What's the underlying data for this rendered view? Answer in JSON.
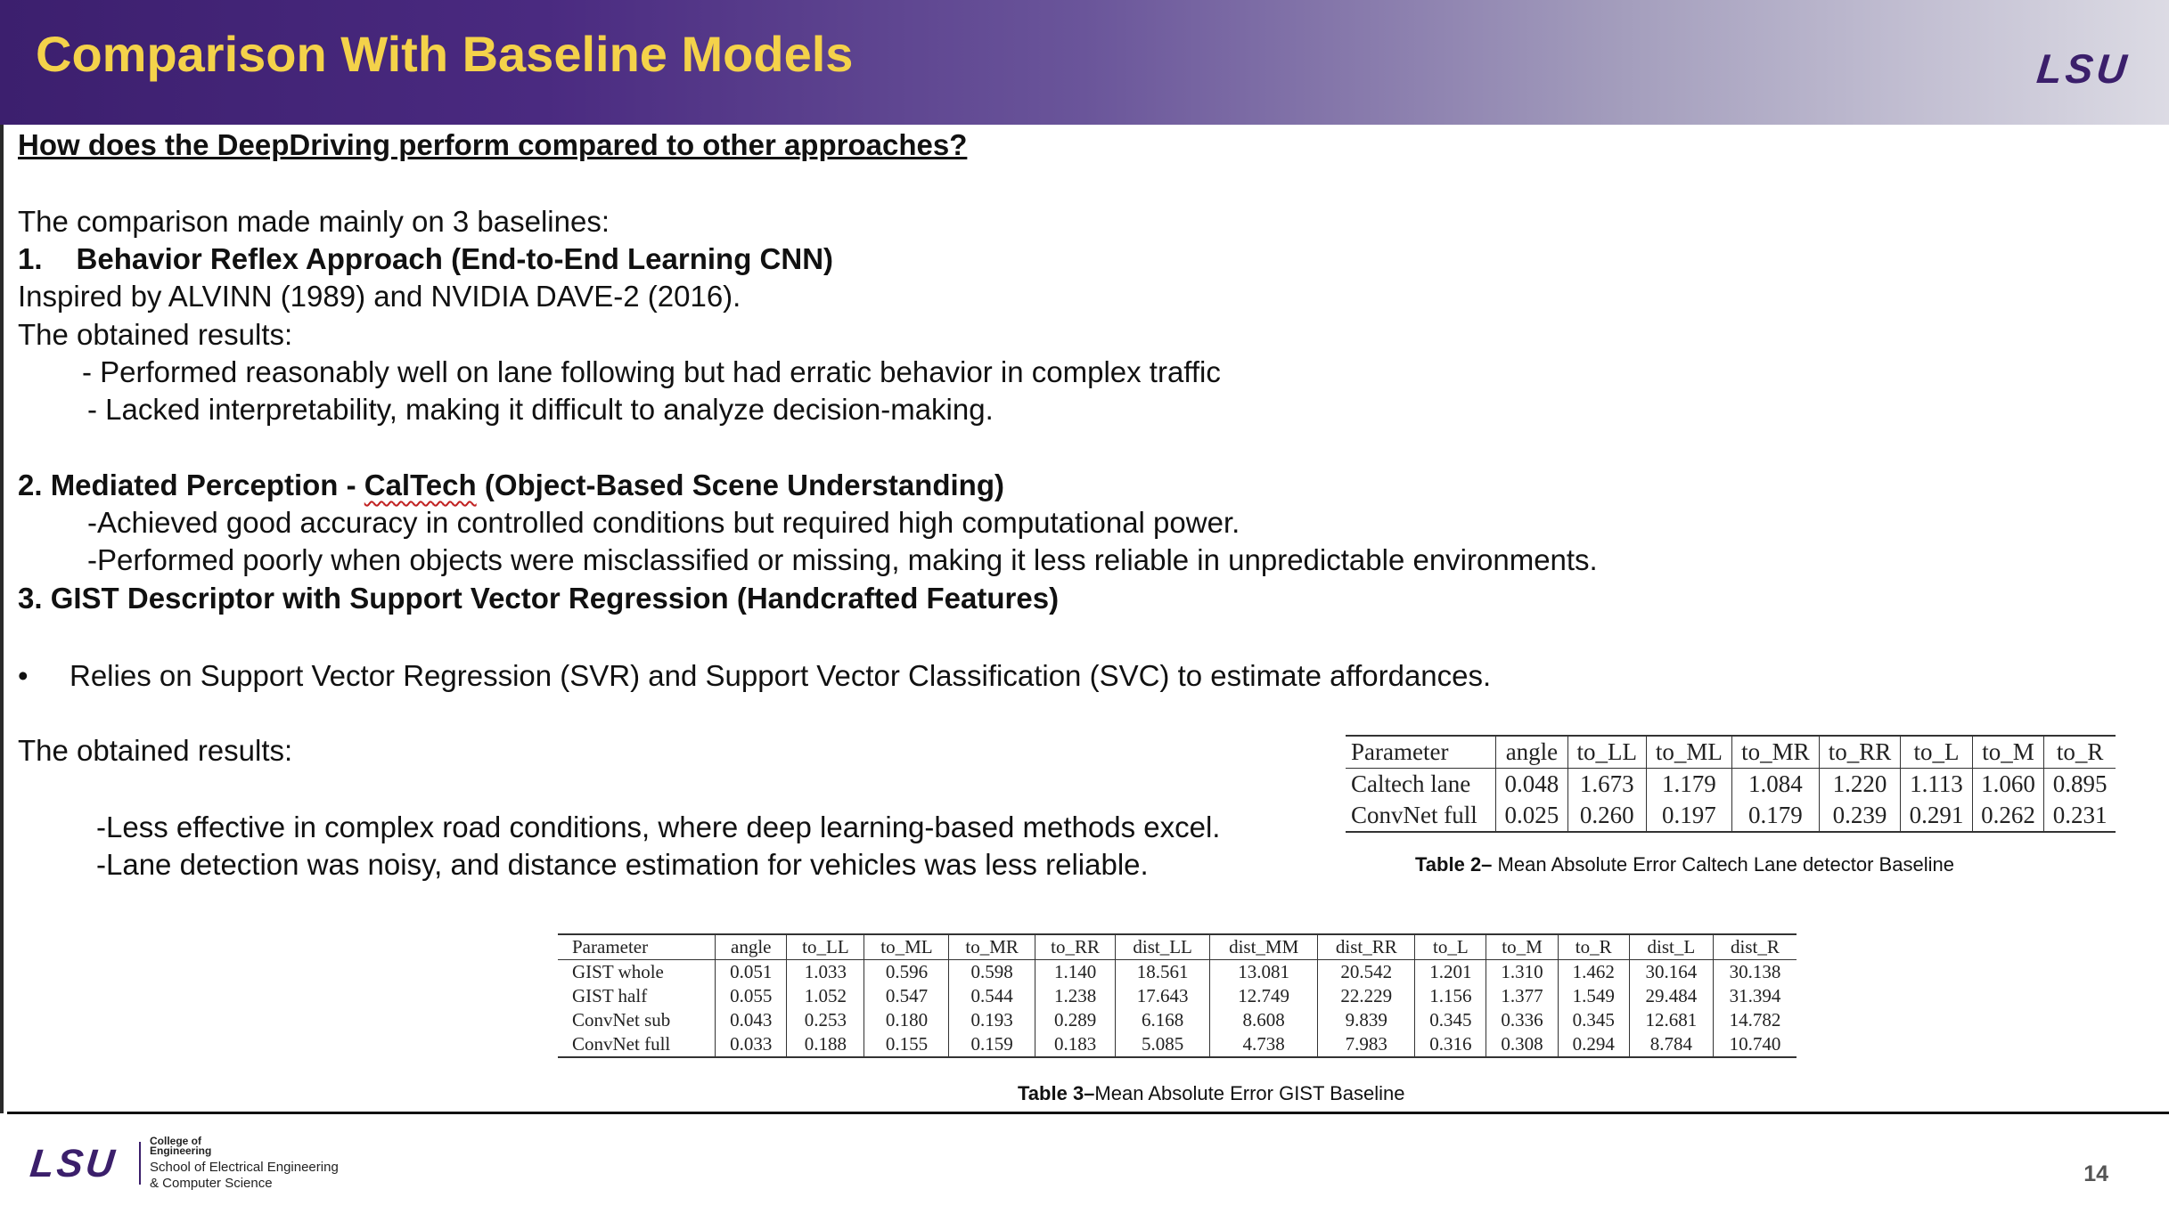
{
  "header": {
    "title": "Comparison With Baseline Models",
    "logo": "LSU",
    "gradient_colors": [
      "#3c1f6e",
      "#dcdbe4"
    ],
    "title_color": "#f4d24a"
  },
  "body": {
    "question": "How does the DeepDriving perform compared to other approaches?",
    "intro": "The comparison made mainly on 3 baselines:",
    "b1_num": "1.",
    "b1_title": "Behavior Reflex Approach (End-to-End Learning CNN)",
    "b1_inspired": "Inspired by ALVINN (1989) and NVIDIA DAVE-2 (2016).",
    "b1_results_label": "The obtained results:",
    "b1_r1": "-  Performed reasonably well on lane following but had erratic behavior in complex traffic",
    "b1_r2": "- Lacked interpretability, making it difficult to analyze decision-making.",
    "b2_title_a": "2. Mediated Perception - ",
    "b2_title_b": "CalTech",
    "b2_title_c": " (Object-Based Scene Understanding)",
    "b2_r1": "-Achieved good accuracy in controlled conditions but required high computational power.",
    "b2_r2": "-Performed poorly when objects were misclassified or missing, making it less reliable in unpredictable environments.",
    "b3_title": "3. GIST Descriptor with Support Vector Regression (Handcrafted Features)",
    "b3_bullet_mark": "•",
    "b3_bullet": "Relies on Support Vector Regression (SVR) and Support Vector Classification (SVC) to estimate affordances.",
    "b3_results_label": "The obtained results:",
    "b3_r1": "-Less effective in complex road conditions, where deep learning-based methods excel.",
    "b3_r2": "-Lane detection was noisy, and distance estimation for vehicles was less reliable."
  },
  "table2": {
    "header": [
      "Parameter",
      "angle",
      "to_LL",
      "to_ML",
      "to_MR",
      "to_RR",
      "to_L",
      "to_M",
      "to_R"
    ],
    "rows": [
      [
        "Caltech lane",
        "0.048",
        "1.673",
        "1.179",
        "1.084",
        "1.220",
        "1.113",
        "1.060",
        "0.895"
      ],
      [
        "ConvNet full",
        "0.025",
        "0.260",
        "0.197",
        "0.179",
        "0.239",
        "0.291",
        "0.262",
        "0.231"
      ]
    ],
    "caption_bold": "Table 2– ",
    "caption": " Mean Absolute Error Caltech Lane detector Baseline"
  },
  "table3": {
    "header": [
      "Parameter",
      "angle",
      "to_LL",
      "to_ML",
      "to_MR",
      "to_RR",
      "dist_LL",
      "dist_MM",
      "dist_RR",
      "to_L",
      "to_M",
      "to_R",
      "dist_L",
      "dist_R"
    ],
    "rows": [
      [
        "GIST whole",
        "0.051",
        "1.033",
        "0.596",
        "0.598",
        "1.140",
        "18.561",
        "13.081",
        "20.542",
        "1.201",
        "1.310",
        "1.462",
        "30.164",
        "30.138"
      ],
      [
        "GIST half",
        "0.055",
        "1.052",
        "0.547",
        "0.544",
        "1.238",
        "17.643",
        "12.749",
        "22.229",
        "1.156",
        "1.377",
        "1.549",
        "29.484",
        "31.394"
      ],
      [
        "ConvNet sub",
        "0.043",
        "0.253",
        "0.180",
        "0.193",
        "0.289",
        "6.168",
        "8.608",
        "9.839",
        "0.345",
        "0.336",
        "0.345",
        "12.681",
        "14.782"
      ],
      [
        "ConvNet full",
        "0.033",
        "0.188",
        "0.155",
        "0.159",
        "0.183",
        "5.085",
        "4.738",
        "7.983",
        "0.316",
        "0.308",
        "0.294",
        "8.784",
        "10.740"
      ]
    ],
    "caption_bold": "Table 3–",
    "caption": "Mean Absolute Error GIST Baseline"
  },
  "footer": {
    "logo": "LSU",
    "college_1": "College of",
    "college_2": "Engineering",
    "school_1": "School of Electrical Engineering",
    "school_2": "& Computer Science",
    "page_number": "14"
  }
}
